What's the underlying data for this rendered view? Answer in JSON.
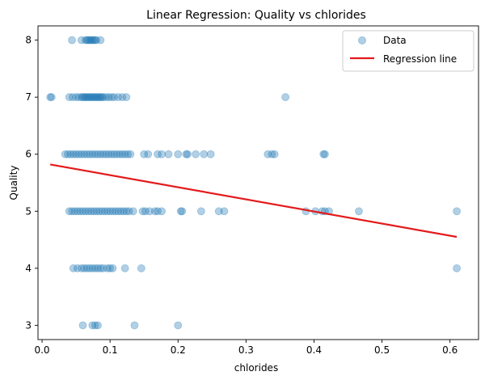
{
  "chart_data": {
    "type": "scatter",
    "title": "Linear Regression: Quality vs chlorides",
    "xlabel": "chlorides",
    "ylabel": "Quality",
    "xlim": [
      -0.006,
      0.642
    ],
    "ylim": [
      2.75,
      8.25
    ],
    "xticks": [
      0.0,
      0.1,
      0.2,
      0.3,
      0.4,
      0.5,
      0.6
    ],
    "xtick_labels": [
      "0.0",
      "0.1",
      "0.2",
      "0.3",
      "0.4",
      "0.5",
      "0.6"
    ],
    "yticks": [
      3,
      4,
      5,
      6,
      7,
      8
    ],
    "ytick_labels": [
      "3",
      "4",
      "5",
      "6",
      "7",
      "8"
    ],
    "grid": false,
    "legend": {
      "placement": "top-right",
      "entries": [
        {
          "label": "Data",
          "kind": "marker",
          "color": "#1f77b4"
        },
        {
          "label": "Regression line",
          "kind": "line",
          "color": "#e41a1c"
        }
      ]
    },
    "series": [
      {
        "name": "Data",
        "kind": "scatter",
        "color": "#1f77b4",
        "alpha": 0.35,
        "points": [
          [
            0.044,
            8
          ],
          [
            0.058,
            8
          ],
          [
            0.064,
            8
          ],
          [
            0.066,
            8
          ],
          [
            0.068,
            8
          ],
          [
            0.07,
            8
          ],
          [
            0.072,
            8
          ],
          [
            0.074,
            8
          ],
          [
            0.076,
            8
          ],
          [
            0.078,
            8
          ],
          [
            0.08,
            8
          ],
          [
            0.086,
            8
          ],
          [
            0.012,
            7
          ],
          [
            0.014,
            7
          ],
          [
            0.04,
            7
          ],
          [
            0.045,
            7
          ],
          [
            0.05,
            7
          ],
          [
            0.054,
            7
          ],
          [
            0.058,
            7
          ],
          [
            0.06,
            7
          ],
          [
            0.062,
            7
          ],
          [
            0.064,
            7
          ],
          [
            0.066,
            7
          ],
          [
            0.068,
            7
          ],
          [
            0.07,
            7
          ],
          [
            0.072,
            7
          ],
          [
            0.074,
            7
          ],
          [
            0.076,
            7
          ],
          [
            0.078,
            7
          ],
          [
            0.08,
            7
          ],
          [
            0.082,
            7
          ],
          [
            0.084,
            7
          ],
          [
            0.086,
            7
          ],
          [
            0.088,
            7
          ],
          [
            0.09,
            7
          ],
          [
            0.094,
            7
          ],
          [
            0.098,
            7
          ],
          [
            0.102,
            7
          ],
          [
            0.106,
            7
          ],
          [
            0.112,
            7
          ],
          [
            0.118,
            7
          ],
          [
            0.124,
            7
          ],
          [
            0.358,
            7
          ],
          [
            0.034,
            6
          ],
          [
            0.038,
            6
          ],
          [
            0.042,
            6
          ],
          [
            0.046,
            6
          ],
          [
            0.05,
            6
          ],
          [
            0.054,
            6
          ],
          [
            0.058,
            6
          ],
          [
            0.062,
            6
          ],
          [
            0.066,
            6
          ],
          [
            0.07,
            6
          ],
          [
            0.074,
            6
          ],
          [
            0.078,
            6
          ],
          [
            0.082,
            6
          ],
          [
            0.086,
            6
          ],
          [
            0.09,
            6
          ],
          [
            0.094,
            6
          ],
          [
            0.098,
            6
          ],
          [
            0.102,
            6
          ],
          [
            0.106,
            6
          ],
          [
            0.11,
            6
          ],
          [
            0.114,
            6
          ],
          [
            0.118,
            6
          ],
          [
            0.122,
            6
          ],
          [
            0.126,
            6
          ],
          [
            0.13,
            6
          ],
          [
            0.15,
            6
          ],
          [
            0.156,
            6
          ],
          [
            0.17,
            6
          ],
          [
            0.176,
            6
          ],
          [
            0.186,
            6
          ],
          [
            0.2,
            6
          ],
          [
            0.212,
            6
          ],
          [
            0.214,
            6
          ],
          [
            0.226,
            6
          ],
          [
            0.238,
            6
          ],
          [
            0.248,
            6
          ],
          [
            0.332,
            6
          ],
          [
            0.338,
            6
          ],
          [
            0.342,
            6
          ],
          [
            0.414,
            6
          ],
          [
            0.416,
            6
          ],
          [
            0.04,
            5
          ],
          [
            0.044,
            5
          ],
          [
            0.048,
            5
          ],
          [
            0.052,
            5
          ],
          [
            0.056,
            5
          ],
          [
            0.06,
            5
          ],
          [
            0.064,
            5
          ],
          [
            0.068,
            5
          ],
          [
            0.072,
            5
          ],
          [
            0.076,
            5
          ],
          [
            0.08,
            5
          ],
          [
            0.084,
            5
          ],
          [
            0.088,
            5
          ],
          [
            0.092,
            5
          ],
          [
            0.096,
            5
          ],
          [
            0.1,
            5
          ],
          [
            0.104,
            5
          ],
          [
            0.108,
            5
          ],
          [
            0.112,
            5
          ],
          [
            0.116,
            5
          ],
          [
            0.12,
            5
          ],
          [
            0.124,
            5
          ],
          [
            0.128,
            5
          ],
          [
            0.134,
            5
          ],
          [
            0.148,
            5
          ],
          [
            0.152,
            5
          ],
          [
            0.158,
            5
          ],
          [
            0.166,
            5
          ],
          [
            0.17,
            5
          ],
          [
            0.176,
            5
          ],
          [
            0.204,
            5
          ],
          [
            0.206,
            5
          ],
          [
            0.234,
            5
          ],
          [
            0.26,
            5
          ],
          [
            0.268,
            5
          ],
          [
            0.388,
            5
          ],
          [
            0.402,
            5
          ],
          [
            0.412,
            5
          ],
          [
            0.416,
            5
          ],
          [
            0.422,
            5
          ],
          [
            0.466,
            5
          ],
          [
            0.61,
            5
          ],
          [
            0.046,
            4
          ],
          [
            0.052,
            4
          ],
          [
            0.058,
            4
          ],
          [
            0.062,
            4
          ],
          [
            0.066,
            4
          ],
          [
            0.07,
            4
          ],
          [
            0.074,
            4
          ],
          [
            0.078,
            4
          ],
          [
            0.082,
            4
          ],
          [
            0.086,
            4
          ],
          [
            0.09,
            4
          ],
          [
            0.096,
            4
          ],
          [
            0.1,
            4
          ],
          [
            0.104,
            4
          ],
          [
            0.122,
            4
          ],
          [
            0.146,
            4
          ],
          [
            0.61,
            4
          ],
          [
            0.06,
            3
          ],
          [
            0.074,
            3
          ],
          [
            0.078,
            3
          ],
          [
            0.082,
            3
          ],
          [
            0.136,
            3
          ],
          [
            0.2,
            3
          ]
        ]
      },
      {
        "name": "Regression line",
        "kind": "line",
        "color": "#e41a1c",
        "points": [
          [
            0.012,
            5.82
          ],
          [
            0.61,
            4.55
          ]
        ]
      }
    ]
  }
}
